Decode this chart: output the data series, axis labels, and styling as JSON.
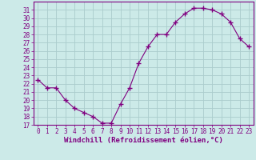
{
  "x": [
    0,
    1,
    2,
    3,
    4,
    5,
    6,
    7,
    8,
    9,
    10,
    11,
    12,
    13,
    14,
    15,
    16,
    17,
    18,
    19,
    20,
    21,
    22,
    23
  ],
  "y": [
    22.5,
    21.5,
    21.5,
    20.0,
    19.0,
    18.5,
    18.0,
    17.2,
    17.2,
    19.5,
    21.5,
    24.5,
    26.5,
    28.0,
    28.0,
    29.5,
    30.5,
    31.2,
    31.2,
    31.0,
    30.5,
    29.5,
    27.5,
    26.5
  ],
  "line_color": "#800080",
  "marker": "+",
  "marker_size": 4,
  "bg_color": "#cceae8",
  "grid_color": "#aacccc",
  "xlabel": "Windchill (Refroidissement éolien,°C)",
  "ylim": [
    17,
    32
  ],
  "xlim": [
    -0.5,
    23.5
  ],
  "yticks": [
    17,
    18,
    19,
    20,
    21,
    22,
    23,
    24,
    25,
    26,
    27,
    28,
    29,
    30,
    31
  ],
  "xticks": [
    0,
    1,
    2,
    3,
    4,
    5,
    6,
    7,
    8,
    9,
    10,
    11,
    12,
    13,
    14,
    15,
    16,
    17,
    18,
    19,
    20,
    21,
    22,
    23
  ],
  "tick_label_size": 5.5,
  "xlabel_size": 6.5,
  "xlabel_color": "#800080",
  "tick_color": "#800080",
  "spine_color": "#800080"
}
